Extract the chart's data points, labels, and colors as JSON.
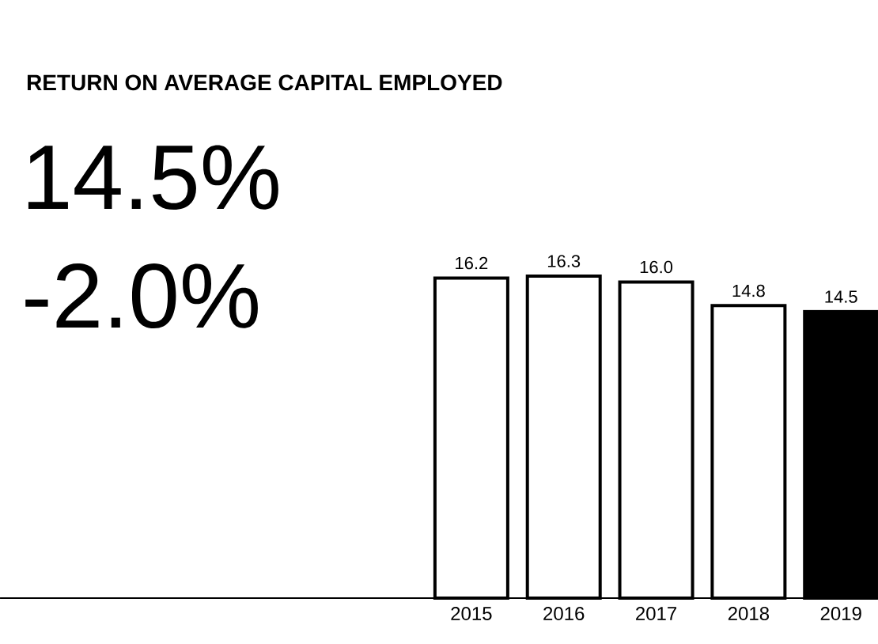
{
  "chart_data": {
    "type": "bar",
    "title": "RETURN ON AVERAGE CAPITAL EMPLOYED",
    "annotations": [
      "14.5%",
      "-2.0%"
    ],
    "categories": [
      "2015",
      "2016",
      "2017",
      "2018",
      "2019"
    ],
    "values": [
      16.2,
      16.3,
      16.0,
      14.8,
      14.5
    ],
    "colors": [
      "#ffffff",
      "#ffffff",
      "#ffffff",
      "#ffffff",
      "#000000"
    ],
    "value_labels": [
      "16.2",
      "16.3",
      "16.0",
      "14.8",
      "14.5"
    ]
  }
}
